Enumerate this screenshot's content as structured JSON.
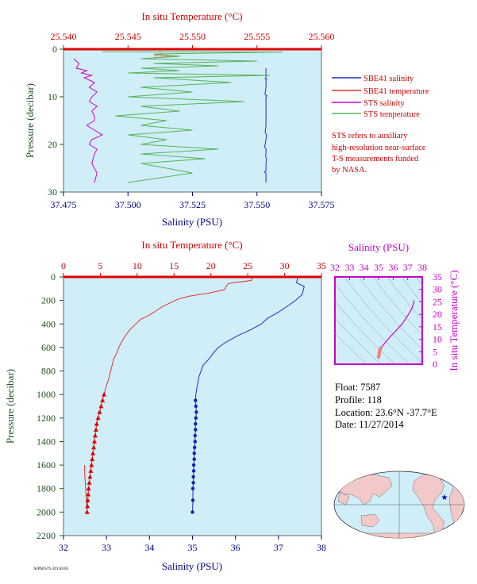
{
  "colors": {
    "plot_bg": "#cfeef8",
    "salinity": "#1f2ec8",
    "temperature": "#e23030",
    "sts_salinity": "#d000d0",
    "sts_temperature": "#57b357",
    "sbe_temp_top": "#ef8a8a",
    "density": "#8899aa"
  },
  "chart_data": [
    {
      "id": "near_surface",
      "type": "line",
      "title": "",
      "top_axis_label": "In situ Temperature (°C)",
      "top_ticks": [
        "25.540",
        "25.545",
        "25.550",
        "25.555",
        "25.560"
      ],
      "top_range": [
        25.54,
        25.56
      ],
      "bottom_axis_label": "Salinity (PSU)",
      "bottom_ticks": [
        "37.475",
        "37.500",
        "37.525",
        "37.550",
        "37.575"
      ],
      "bottom_range": [
        37.475,
        37.575
      ],
      "ylabel": "Pressure (decibar)",
      "y_ticks": [
        "0",
        "10",
        "20",
        "30"
      ],
      "ylim": [
        0,
        30
      ],
      "legend": [
        "SBE41 salinity",
        "SBE41 temperature",
        "STS salinity",
        "STS temperature"
      ],
      "note": [
        "STS refers to auxiliary",
        "high-resolution near-surface",
        "T-S measurements funded",
        "by NASA."
      ],
      "series": [
        {
          "name": "SBE41 salinity",
          "axis": "salinity",
          "x": [
            37.5535,
            37.5535,
            37.5535,
            37.5532,
            37.5538,
            37.5535,
            37.5535,
            37.5531,
            37.5539,
            37.5535,
            37.5535,
            37.5535,
            37.5535,
            37.5532,
            37.5537,
            37.5535,
            37.553,
            37.5535,
            37.5535,
            37.5533,
            37.5537,
            37.5535,
            37.5535,
            37.5535,
            37.5529,
            37.5535,
            37.5535,
            37.5535
          ],
          "y": [
            4.0,
            5.0,
            6.0,
            6.2,
            6.4,
            6.6,
            8.0,
            9.5,
            9.8,
            10.0,
            12.0,
            14.0,
            16.0,
            17.5,
            18.0,
            19.0,
            20.5,
            21.0,
            22.0,
            22.5,
            23.0,
            24.0,
            25.0,
            25.5,
            25.8,
            26.0,
            27.0,
            28.0
          ]
        },
        {
          "name": "SBE41 temperature",
          "axis": "temperature",
          "x": [
            25.5475,
            25.5475,
            25.547,
            25.549,
            25.547
          ],
          "y": [
            0.6,
            1.0,
            1.4,
            1.4,
            1.8
          ]
        },
        {
          "name": "STS salinity",
          "axis": "salinity",
          "x": [
            37.479,
            37.481,
            37.48,
            37.484,
            37.482,
            37.486,
            37.483,
            37.487,
            37.485,
            37.488,
            37.486,
            37.485,
            37.488,
            37.486,
            37.487,
            37.487,
            37.484,
            37.487,
            37.49,
            37.486,
            37.485,
            37.488,
            37.487,
            37.486,
            37.488,
            37.487
          ],
          "y": [
            2.0,
            3.0,
            4.0,
            4.5,
            5.0,
            5.5,
            6.0,
            7.0,
            8.0,
            9.0,
            10.0,
            11.0,
            12.0,
            13.0,
            14.0,
            15.0,
            16.0,
            17.0,
            18.0,
            19.0,
            20.0,
            21.0,
            22.0,
            24.0,
            26.0,
            28.0
          ]
        },
        {
          "name": "STS temperature",
          "axis": "temperature",
          "x": [
            25.543,
            25.557,
            25.547,
            25.549,
            25.546,
            25.555,
            25.547,
            25.552,
            25.546,
            25.549,
            25.545,
            25.556,
            25.547,
            25.553,
            25.546,
            25.55,
            25.545,
            25.554,
            25.546,
            25.549,
            25.544,
            25.548,
            25.546,
            25.55,
            25.545,
            25.548,
            25.546,
            25.552,
            25.546,
            25.551,
            25.546,
            25.55,
            25.545
          ],
          "y": [
            0.5,
            0.6,
            1.0,
            1.5,
            2.0,
            2.5,
            3.0,
            3.5,
            4.0,
            4.5,
            5.0,
            5.5,
            6.0,
            7.0,
            8.0,
            9.0,
            10.0,
            11.0,
            12.0,
            13.0,
            14.0,
            15.0,
            16.0,
            17.0,
            18.0,
            19.0,
            20.0,
            21.0,
            22.0,
            23.0,
            24.0,
            26.0,
            28.0
          ]
        }
      ]
    },
    {
      "id": "profile",
      "type": "line",
      "top_axis_label": "In situ Temperature (°C)",
      "top_ticks": [
        "0",
        "5",
        "10",
        "15",
        "20",
        "25",
        "30",
        "35"
      ],
      "top_range": [
        0,
        35
      ],
      "bottom_axis_label": "Salinity (PSU)",
      "bottom_ticks": [
        "32",
        "33",
        "34",
        "35",
        "36",
        "37",
        "38"
      ],
      "bottom_range": [
        32,
        38
      ],
      "ylabel": "Pressure (decibar)",
      "y_ticks": [
        "0",
        "200",
        "400",
        "600",
        "800",
        "1000",
        "1200",
        "1400",
        "1600",
        "1800",
        "2000",
        "2200"
      ],
      "ylim": [
        0,
        2200
      ],
      "series": [
        {
          "name": "Salinity",
          "axis": "salinity",
          "x": [
            37.45,
            37.42,
            37.6,
            37.55,
            37.4,
            37.2,
            37.0,
            36.75,
            36.6,
            36.35,
            36.05,
            35.8,
            35.6,
            35.48,
            35.38,
            35.25,
            35.15,
            35.1,
            35.08,
            35.07,
            35.08,
            35.09,
            35.08,
            35.07,
            35.07,
            35.06,
            35.06,
            35.05,
            35.04,
            35.04,
            35.03,
            35.03,
            35.02,
            35.02,
            35.01,
            35.01,
            35.0
          ],
          "y": [
            5,
            50,
            80,
            150,
            200,
            250,
            300,
            350,
            400,
            450,
            500,
            550,
            600,
            650,
            700,
            750,
            850,
            950,
            1000,
            1050,
            1100,
            1150,
            1200,
            1250,
            1300,
            1350,
            1400,
            1450,
            1500,
            1550,
            1600,
            1650,
            1700,
            1750,
            1800,
            1900,
            2000
          ],
          "marker_from": 19
        },
        {
          "name": "Temperature",
          "axis": "temperature",
          "x": [
            25.6,
            25.5,
            22.5,
            22.3,
            21.8,
            19.5,
            17.0,
            15.5,
            14.5,
            13.5,
            12.5,
            11.5,
            10.5,
            9.8,
            9.0,
            8.4,
            7.9,
            7.5,
            7.2,
            6.8,
            6.6,
            6.4,
            6.2,
            5.95,
            5.7,
            5.5,
            5.3,
            5.1,
            4.9,
            4.7,
            4.5,
            4.4,
            4.3,
            4.2,
            4.1,
            4.0,
            3.9,
            3.8,
            3.7,
            3.6,
            3.5,
            3.4,
            3.35,
            3.3,
            3.25,
            3.2,
            3.15,
            3.1,
            3.05,
            3.0,
            2.95,
            2.9,
            2.87,
            2.85
          ],
          "y": [
            0,
            30,
            55,
            60,
            110,
            140,
            165,
            190,
            220,
            250,
            290,
            330,
            360,
            400,
            450,
            500,
            550,
            600,
            650,
            700,
            750,
            800,
            850,
            900,
            950,
            1000,
            1050,
            1100,
            1150,
            1200,
            1250,
            1300,
            1350,
            1400,
            1450,
            1500,
            1550,
            1600,
            1650,
            1700,
            1750,
            1800,
            1850,
            1900,
            1950,
            2000,
            1950,
            1900,
            1850,
            1800,
            1750,
            1700,
            1650,
            1600
          ],
          "marker_indices": [
            25,
            26,
            27,
            28,
            29,
            30,
            31,
            32,
            33,
            34,
            35,
            36,
            37,
            38,
            39,
            40,
            41,
            42,
            43,
            44,
            45
          ]
        }
      ]
    },
    {
      "id": "ts_diagram",
      "type": "scatter",
      "top_axis_label": "Salinity (PSU)",
      "top_ticks": [
        "32",
        "33",
        "34",
        "35",
        "36",
        "37",
        "38"
      ],
      "top_range": [
        32,
        38
      ],
      "right_axis_label": "In situ Temperature (°C)",
      "right_ticks": [
        "0",
        "5",
        "10",
        "15",
        "20",
        "25",
        "30",
        "35"
      ],
      "right_range": [
        0,
        35
      ],
      "series": [
        {
          "name": "profile",
          "x": [
            37.45,
            37.3,
            37.0,
            36.6,
            36.2,
            35.8,
            35.5,
            35.3,
            35.15,
            35.1,
            35.07,
            35.05,
            35.03,
            35.02,
            35.0
          ],
          "y": [
            25.6,
            22.5,
            19.5,
            16.0,
            13.5,
            11.0,
            9.0,
            7.5,
            6.5,
            5.9,
            5.3,
            4.6,
            4.0,
            3.4,
            2.9
          ]
        }
      ]
    }
  ],
  "info": {
    "float": "Float:  7587",
    "profile": "Profile:  118",
    "location": "Location:  23.6°N  -37.7°E",
    "date": "Date:  11/27/2014"
  },
  "footer_code": "AJPM/STS 20150104",
  "map": {
    "marker": "★",
    "marker_lat": 23.6,
    "marker_lon": -37.7
  }
}
